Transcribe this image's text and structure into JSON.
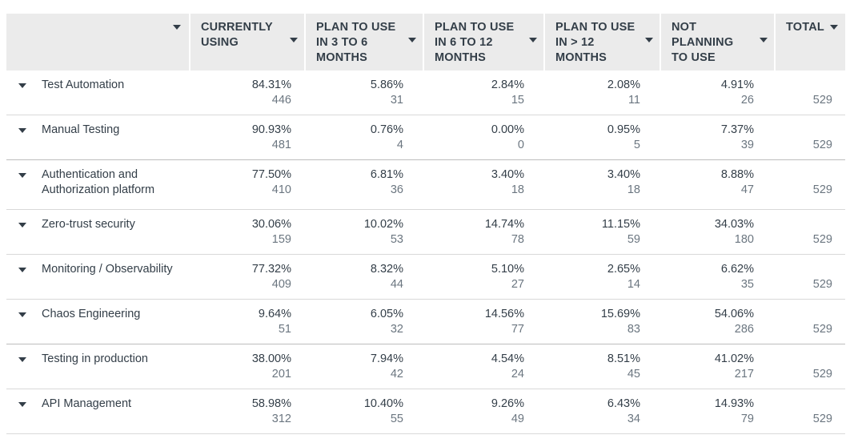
{
  "header": {
    "label_col": "",
    "columns": [
      "CURRENTLY USING",
      "PLAN TO USE IN 3 TO 6 MONTHS",
      "PLAN TO USE IN 6 TO 12 MONTHS",
      "PLAN TO USE IN > 12 MONTHS",
      "NOT PLANNING TO USE",
      "TOTAL"
    ]
  },
  "rows": [
    {
      "label": "Test Automation",
      "cur": {
        "pct": "84.31%",
        "n": "446"
      },
      "p36": {
        "pct": "5.86%",
        "n": "31"
      },
      "p612": {
        "pct": "2.84%",
        "n": "15"
      },
      "pgt12": {
        "pct": "2.08%",
        "n": "11"
      },
      "not": {
        "pct": "4.91%",
        "n": "26"
      },
      "total": "529"
    },
    {
      "label": "Manual Testing",
      "cur": {
        "pct": "90.93%",
        "n": "481"
      },
      "p36": {
        "pct": "0.76%",
        "n": "4"
      },
      "p612": {
        "pct": "0.00%",
        "n": "0"
      },
      "pgt12": {
        "pct": "0.95%",
        "n": "5"
      },
      "not": {
        "pct": "7.37%",
        "n": "39"
      },
      "total": "529"
    },
    {
      "label": "Authentication and Authorization platform",
      "cur": {
        "pct": "77.50%",
        "n": "410"
      },
      "p36": {
        "pct": "6.81%",
        "n": "36"
      },
      "p612": {
        "pct": "3.40%",
        "n": "18"
      },
      "pgt12": {
        "pct": "3.40%",
        "n": "18"
      },
      "not": {
        "pct": "8.88%",
        "n": "47"
      },
      "total": "529"
    },
    {
      "label": " Zero-trust security",
      "cur": {
        "pct": "30.06%",
        "n": "159"
      },
      "p36": {
        "pct": "10.02%",
        "n": "53"
      },
      "p612": {
        "pct": "14.74%",
        "n": "78"
      },
      "pgt12": {
        "pct": "11.15%",
        "n": "59"
      },
      "not": {
        "pct": "34.03%",
        "n": "180"
      },
      "total": "529"
    },
    {
      "label": " Monitoring / Observability",
      "cur": {
        "pct": "77.32%",
        "n": "409"
      },
      "p36": {
        "pct": "8.32%",
        "n": "44"
      },
      "p612": {
        "pct": "5.10%",
        "n": "27"
      },
      "pgt12": {
        "pct": "2.65%",
        "n": "14"
      },
      "not": {
        "pct": "6.62%",
        "n": "35"
      },
      "total": "529"
    },
    {
      "label": " Chaos Engineering",
      "cur": {
        "pct": "9.64%",
        "n": "51"
      },
      "p36": {
        "pct": "6.05%",
        "n": "32"
      },
      "p612": {
        "pct": "14.56%",
        "n": "77"
      },
      "pgt12": {
        "pct": "15.69%",
        "n": "83"
      },
      "not": {
        "pct": "54.06%",
        "n": "286"
      },
      "total": "529"
    },
    {
      "label": " Testing in production",
      "cur": {
        "pct": "38.00%",
        "n": "201"
      },
      "p36": {
        "pct": "7.94%",
        "n": "42"
      },
      "p612": {
        "pct": "4.54%",
        "n": "24"
      },
      "pgt12": {
        "pct": "8.51%",
        "n": "45"
      },
      "not": {
        "pct": "41.02%",
        "n": "217"
      },
      "total": "529"
    },
    {
      "label": "API Management",
      "cur": {
        "pct": "58.98%",
        "n": "312"
      },
      "p36": {
        "pct": "10.40%",
        "n": "55"
      },
      "p612": {
        "pct": "9.26%",
        "n": "49"
      },
      "pgt12": {
        "pct": "6.43%",
        "n": "34"
      },
      "not": {
        "pct": "14.93%",
        "n": "79"
      },
      "total": "529"
    }
  ],
  "colors": {
    "header_bg": "#ebebeb",
    "text": "#333e48",
    "count_text": "#6b7680",
    "row_divider": "#d9d9d9"
  },
  "icons": {
    "header_sort": "caret-down-icon",
    "row_expand": "caret-down-icon"
  }
}
